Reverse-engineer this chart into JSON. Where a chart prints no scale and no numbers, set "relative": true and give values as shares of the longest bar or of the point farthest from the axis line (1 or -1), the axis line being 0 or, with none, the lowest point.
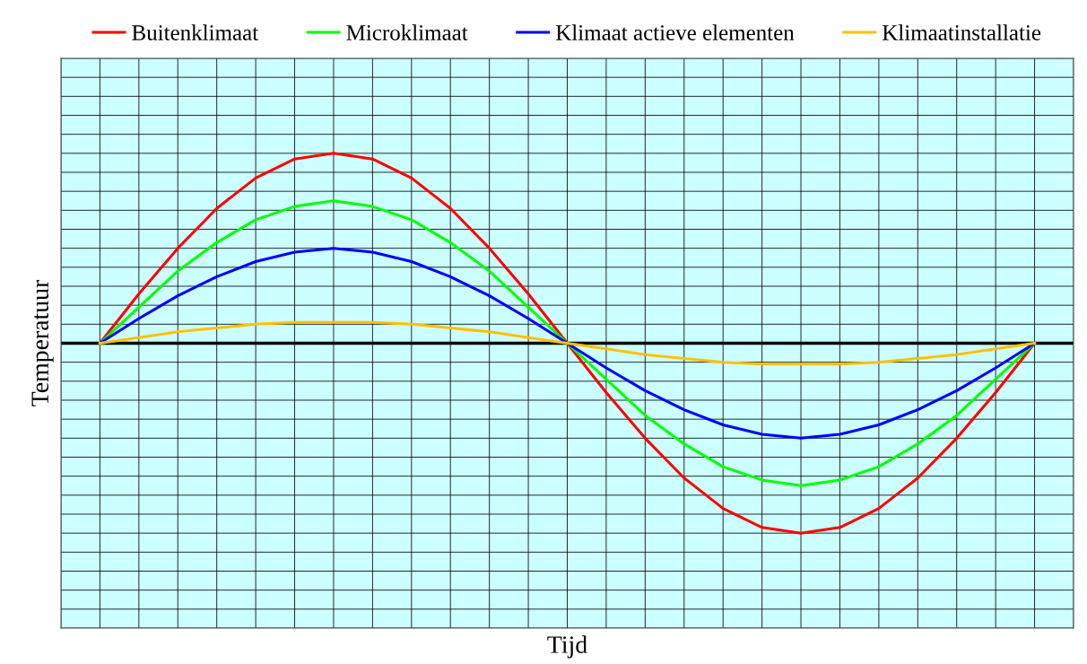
{
  "chart_data": {
    "type": "line",
    "relative": true,
    "xlabel": "Tijd",
    "ylabel": "Temperatuur",
    "categories": [
      null,
      null,
      null,
      null,
      null,
      null,
      null,
      null,
      null,
      null,
      null,
      null,
      null,
      null,
      null,
      null,
      null,
      null,
      null,
      null,
      null,
      null,
      null,
      null,
      null
    ],
    "series": [
      {
        "name": "Buitenklimaat",
        "color": "#ff0000",
        "values": [
          0,
          0.26,
          0.5,
          0.71,
          0.87,
          0.97,
          1,
          0.97,
          0.87,
          0.71,
          0.5,
          0.26,
          0,
          -0.26,
          -0.5,
          -0.71,
          -0.87,
          -0.97,
          -1,
          -0.97,
          -0.87,
          -0.71,
          -0.5,
          -0.26,
          0
        ]
      },
      {
        "name": "Microklimaat",
        "color": "#00ff00",
        "values": [
          0,
          0.19,
          0.38,
          0.53,
          0.65,
          0.72,
          0.75,
          0.72,
          0.65,
          0.53,
          0.38,
          0.19,
          0,
          -0.19,
          -0.38,
          -0.53,
          -0.65,
          -0.72,
          -0.75,
          -0.72,
          -0.65,
          -0.53,
          -0.38,
          -0.19,
          0
        ]
      },
      {
        "name": "Klimaat actieve elementen",
        "color": "#0000ff",
        "values": [
          0,
          0.13,
          0.25,
          0.35,
          0.43,
          0.48,
          0.5,
          0.48,
          0.43,
          0.35,
          0.25,
          0.13,
          0,
          -0.13,
          -0.25,
          -0.35,
          -0.43,
          -0.48,
          -0.5,
          -0.48,
          -0.43,
          -0.35,
          -0.25,
          -0.13,
          0
        ]
      },
      {
        "name": "Klimaatinstallatie",
        "color": "#ffc000",
        "values": [
          0,
          0.03,
          0.06,
          0.08,
          0.1,
          0.11,
          0.11,
          0.11,
          0.1,
          0.08,
          0.06,
          0.03,
          0,
          -0.03,
          -0.06,
          -0.08,
          -0.1,
          -0.11,
          -0.11,
          -0.11,
          -0.1,
          -0.08,
          -0.06,
          -0.03,
          0
        ]
      }
    ],
    "grid": true,
    "legend": "top",
    "tick_labels": false,
    "marker": "none",
    "line_style": "solid"
  }
}
